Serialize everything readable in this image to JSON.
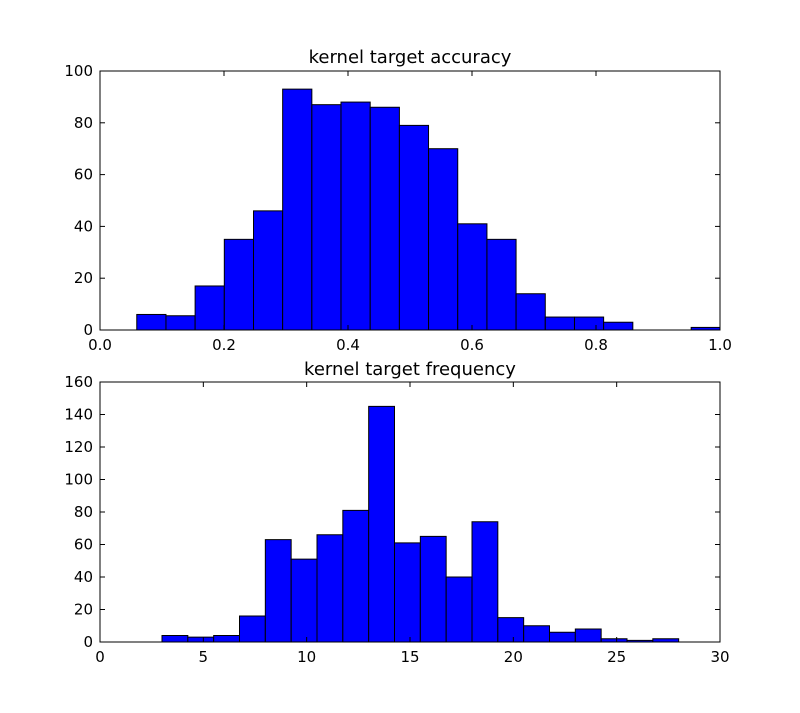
{
  "chart_data": [
    {
      "type": "bar",
      "subtype": "histogram",
      "title": "kernel target accuracy",
      "xlabel": "",
      "ylabel": "",
      "xlim": [
        0.0,
        1.0
      ],
      "ylim": [
        0,
        100
      ],
      "xticks": [
        "0.0",
        "0.2",
        "0.4",
        "0.6",
        "0.8",
        "1.0"
      ],
      "xtick_values": [
        0.0,
        0.2,
        0.4,
        0.6,
        0.8,
        1.0
      ],
      "yticks": [
        "0",
        "20",
        "40",
        "60",
        "80",
        "100"
      ],
      "ytick_values": [
        0,
        20,
        40,
        60,
        80,
        100
      ],
      "bin_edges": [
        0.0593,
        0.1064,
        0.1534,
        0.2005,
        0.2476,
        0.2946,
        0.3417,
        0.3887,
        0.4358,
        0.4829,
        0.5299,
        0.577,
        0.6241,
        0.6711,
        0.7182,
        0.7653,
        0.8123,
        0.8594,
        0.9064,
        0.9535,
        1.0
      ],
      "values": [
        6,
        5.5,
        17,
        35,
        46,
        93,
        87,
        88,
        86,
        79,
        70,
        41,
        35,
        14,
        5,
        5,
        3,
        0,
        0,
        1
      ],
      "bar_color": "#0000ff",
      "edge_color": "#000000",
      "grid": false
    },
    {
      "type": "bar",
      "subtype": "histogram",
      "title": "kernel target frequency",
      "xlabel": "",
      "ylabel": "",
      "xlim": [
        0,
        30
      ],
      "ylim": [
        0,
        160
      ],
      "xticks": [
        "0",
        "5",
        "10",
        "15",
        "20",
        "25",
        "30"
      ],
      "xtick_values": [
        0,
        5,
        10,
        15,
        20,
        25,
        30
      ],
      "yticks": [
        "0",
        "20",
        "40",
        "60",
        "80",
        "100",
        "120",
        "140",
        "160"
      ],
      "ytick_values": [
        0,
        20,
        40,
        60,
        80,
        100,
        120,
        140,
        160
      ],
      "bin_edges": [
        3,
        4.25,
        5.5,
        6.75,
        8,
        9.25,
        10.5,
        11.75,
        13,
        14.25,
        15.5,
        16.75,
        18,
        19.25,
        20.5,
        21.75,
        23,
        24.25,
        25.5,
        26.75,
        28
      ],
      "values": [
        4,
        3,
        4,
        16,
        63,
        51,
        66,
        81,
        145,
        61,
        65,
        40,
        74,
        15,
        10,
        6,
        8,
        2,
        1,
        2
      ],
      "bar_color": "#0000ff",
      "edge_color": "#000000",
      "grid": false
    }
  ]
}
